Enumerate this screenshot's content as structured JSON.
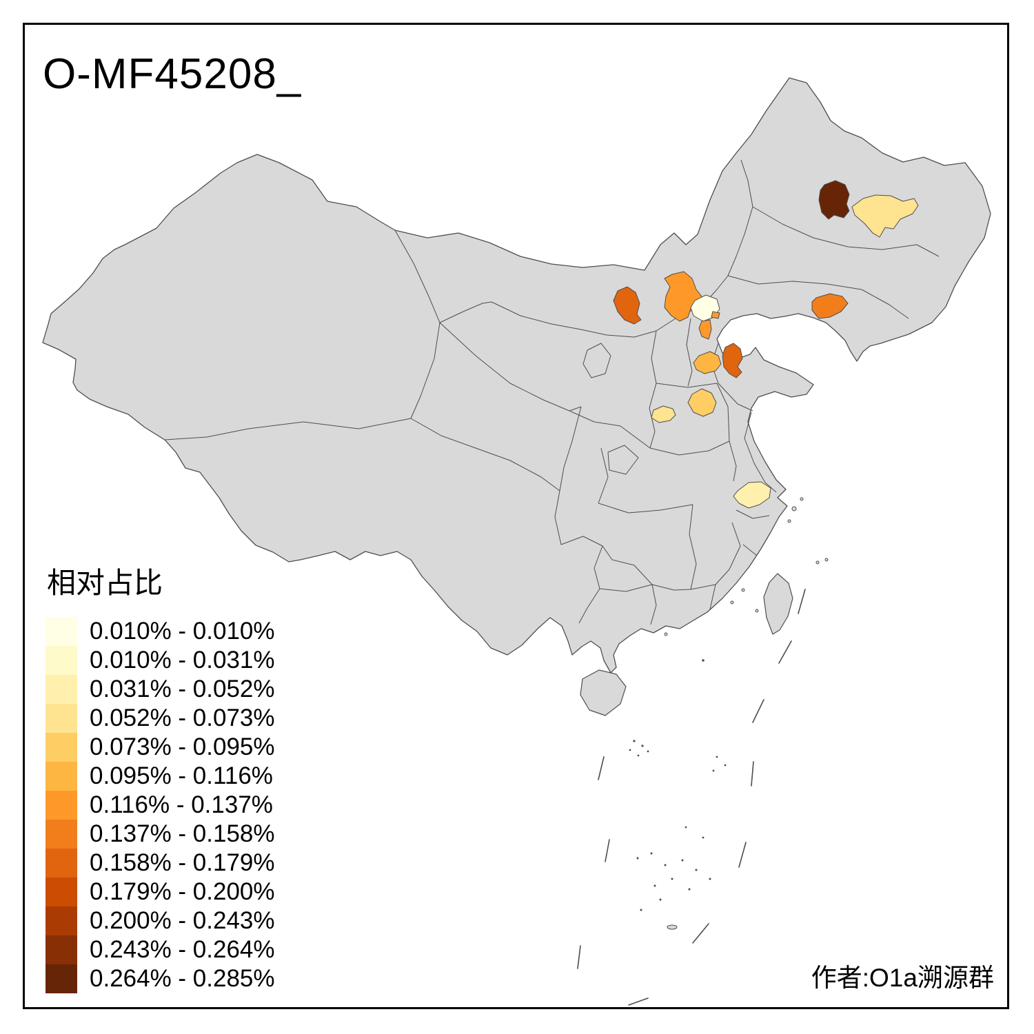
{
  "title": "O-MF45208_",
  "attribution": "作者:O1a溯源群",
  "legend": {
    "title": "相对占比",
    "items": [
      {
        "label": "0.010% - 0.010%",
        "color": "#FFFFE5"
      },
      {
        "label": "0.010% - 0.031%",
        "color": "#FFFACA"
      },
      {
        "label": "0.031% - 0.052%",
        "color": "#FFF0AE"
      },
      {
        "label": "0.052% - 0.073%",
        "color": "#FEE391"
      },
      {
        "label": "0.073% - 0.095%",
        "color": "#FECE65"
      },
      {
        "label": "0.095% - 0.116%",
        "color": "#FEB642"
      },
      {
        "label": "0.116% - 0.137%",
        "color": "#FE9929"
      },
      {
        "label": "0.137% - 0.158%",
        "color": "#F27E1B"
      },
      {
        "label": "0.158% - 0.179%",
        "color": "#E1640E"
      },
      {
        "label": "0.179% - 0.200%",
        "color": "#CC4C02"
      },
      {
        "label": "0.200% - 0.243%",
        "color": "#AA3C03"
      },
      {
        "label": "0.243% - 0.264%",
        "color": "#882F05"
      },
      {
        "label": "0.264% - 0.285%",
        "color": "#662506"
      }
    ]
  },
  "map": {
    "land_color": "#D9D9D9",
    "border_color": "#4D4D4D",
    "background_color": "#FFFFFF",
    "regions": [
      {
        "id": "heilongjiang-west-region",
        "range": "0.264% - 0.285%",
        "color": "#662506"
      },
      {
        "id": "heilongjiang-east-region",
        "range": "0.052% - 0.073%",
        "color": "#FEE391"
      },
      {
        "id": "inner-mongolia-central-region",
        "range": "0.158% - 0.179%",
        "color": "#E1640E"
      },
      {
        "id": "hebei-northwest-region",
        "range": "0.116% - 0.137%",
        "color": "#FE9929"
      },
      {
        "id": "beijing-region",
        "range": "0.010% - 0.010%",
        "color": "#FFFFE5"
      },
      {
        "id": "tianjin-region",
        "range": "0.116% - 0.137%",
        "color": "#FE9929"
      },
      {
        "id": "liaoning-south-region",
        "range": "0.137% - 0.158%",
        "color": "#F27E1B"
      },
      {
        "id": "shandong-west-region",
        "range": "0.095% - 0.116%",
        "color": "#FEB642"
      },
      {
        "id": "shandong-central-region",
        "range": "0.158% - 0.179%",
        "color": "#E1640E"
      },
      {
        "id": "henan-north-region",
        "range": "0.073% - 0.095%",
        "color": "#FECE65"
      },
      {
        "id": "henan-west-region",
        "range": "0.052% - 0.073%",
        "color": "#FEE391"
      },
      {
        "id": "anhui-east-region",
        "range": "0.031% - 0.052%",
        "color": "#FFF0AE"
      }
    ]
  },
  "chart_data": {
    "type": "choropleth",
    "title": "O-MF45208_",
    "legend_title": "相对占比",
    "legend_position": "bottom-left",
    "buckets": [
      "0.010% - 0.010%",
      "0.010% - 0.031%",
      "0.031% - 0.052%",
      "0.052% - 0.073%",
      "0.073% - 0.095%",
      "0.095% - 0.116%",
      "0.116% - 0.137%",
      "0.137% - 0.158%",
      "0.158% - 0.179%",
      "0.179% - 0.200%",
      "0.200% - 0.243%",
      "0.243% - 0.264%",
      "0.264% - 0.285%"
    ],
    "highlighted_regions": [
      {
        "id": "heilongjiang-west-region",
        "value_range": "0.264% - 0.285%"
      },
      {
        "id": "heilongjiang-east-region",
        "value_range": "0.052% - 0.073%"
      },
      {
        "id": "inner-mongolia-central-region",
        "value_range": "0.158% - 0.179%"
      },
      {
        "id": "hebei-northwest-region",
        "value_range": "0.116% - 0.137%"
      },
      {
        "id": "beijing-region",
        "value_range": "0.010% - 0.010%"
      },
      {
        "id": "tianjin-region",
        "value_range": "0.116% - 0.137%"
      },
      {
        "id": "liaoning-south-region",
        "value_range": "0.137% - 0.158%"
      },
      {
        "id": "shandong-west-region",
        "value_range": "0.095% - 0.116%"
      },
      {
        "id": "shandong-central-region",
        "value_range": "0.158% - 0.179%"
      },
      {
        "id": "henan-north-region",
        "value_range": "0.073% - 0.095%"
      },
      {
        "id": "henan-west-region",
        "value_range": "0.052% - 0.073%"
      },
      {
        "id": "anhui-east-region",
        "value_range": "0.031% - 0.052%"
      }
    ],
    "base_region_note": "all other provinces unhighlighted gray"
  }
}
